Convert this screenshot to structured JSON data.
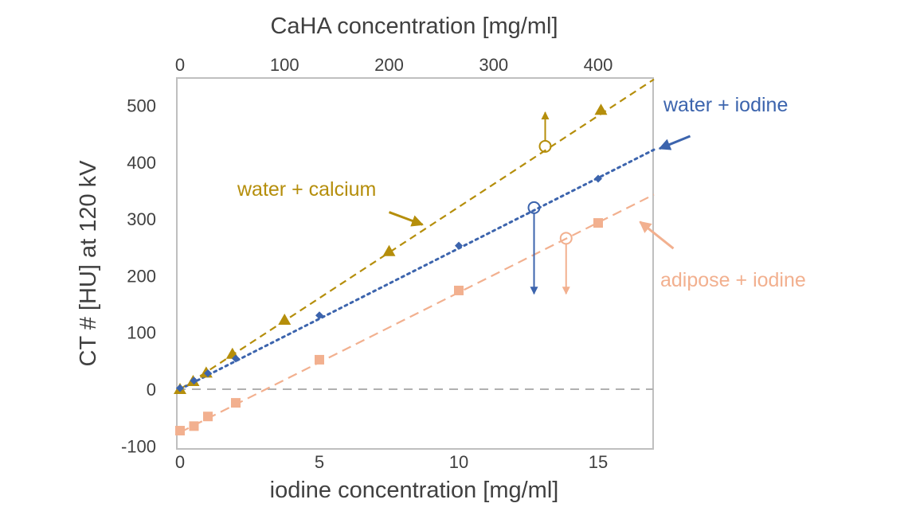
{
  "chart_data": {
    "type": "scatter",
    "xlabel_bottom": "iodine concentration [mg/ml]",
    "xlabel_top": "CaHA concentration [mg/ml]",
    "ylabel": "CT # [HU] at 120 kV",
    "x_bottom_lim": [
      -0.3,
      17
    ],
    "x_bottom_ticks": [
      0,
      5,
      10,
      15
    ],
    "x_top_ticks": [
      0,
      100,
      200,
      300,
      400
    ],
    "top_axis_iodine_per_caha": 0.0375,
    "ylim": [
      -100,
      550
    ],
    "y_ticks": [
      -100,
      0,
      100,
      200,
      300,
      400,
      500
    ],
    "zero_line": true,
    "colors": {
      "calcium": "#b58e0b",
      "iodine": "#3c64ad",
      "adipose": "#f2b08f",
      "axis": "#bfbfbf",
      "text": "#404040",
      "zero": "#b0b0b0"
    },
    "series": [
      {
        "name": "water + calcium",
        "color": "#b58e0b",
        "marker": "triangle",
        "line": "dashed",
        "points": [
          [
            0,
            0
          ],
          [
            0.47,
            14
          ],
          [
            0.94,
            29
          ],
          [
            1.88,
            62
          ],
          [
            3.75,
            122
          ],
          [
            7.5,
            243
          ],
          [
            15.1,
            492
          ]
        ],
        "fit": [
          [
            0,
            0
          ],
          [
            17,
            546
          ]
        ],
        "indicator": {
          "at": [
            13.1,
            428
          ],
          "arrow_to": [
            13.1,
            488
          ],
          "dir": "up"
        }
      },
      {
        "name": "water + iodine",
        "color": "#3c64ad",
        "marker": "diamond",
        "line": "dotted",
        "points": [
          [
            0,
            2
          ],
          [
            0.5,
            15
          ],
          [
            1,
            28
          ],
          [
            2,
            54
          ],
          [
            5,
            130
          ],
          [
            10,
            253
          ],
          [
            15,
            371
          ]
        ],
        "fit": [
          [
            0,
            0
          ],
          [
            17,
            422
          ]
        ],
        "indicator": {
          "at": [
            12.7,
            320
          ],
          "arrow_to": [
            12.7,
            168
          ],
          "dir": "down"
        }
      },
      {
        "name": "adipose + iodine",
        "color": "#f2b08f",
        "marker": "square",
        "line": "dashed",
        "points": [
          [
            0,
            -73
          ],
          [
            0.5,
            -65
          ],
          [
            1,
            -48
          ],
          [
            2,
            -24
          ],
          [
            5,
            52
          ],
          [
            10,
            174
          ],
          [
            15,
            293
          ]
        ],
        "fit": [
          [
            0,
            -76
          ],
          [
            17,
            343
          ]
        ],
        "indicator": {
          "at": [
            13.85,
            266
          ],
          "arrow_to": [
            13.85,
            168
          ],
          "dir": "down"
        }
      }
    ],
    "annotations": [
      {
        "text": "water + calcium",
        "color": "#b58e0b",
        "arrow": {
          "from": [
            7.5,
            312
          ],
          "to": [
            8.7,
            290
          ]
        }
      },
      {
        "text": "water + iodine",
        "color": "#3c64ad",
        "arrow": {
          "from": [
            18.3,
            446
          ],
          "to": [
            17.2,
            424
          ]
        }
      },
      {
        "text": "adipose + iodine",
        "color": "#f2b08f",
        "arrow": {
          "from": [
            17.7,
            248
          ],
          "to": [
            16.5,
            295
          ]
        }
      }
    ]
  }
}
